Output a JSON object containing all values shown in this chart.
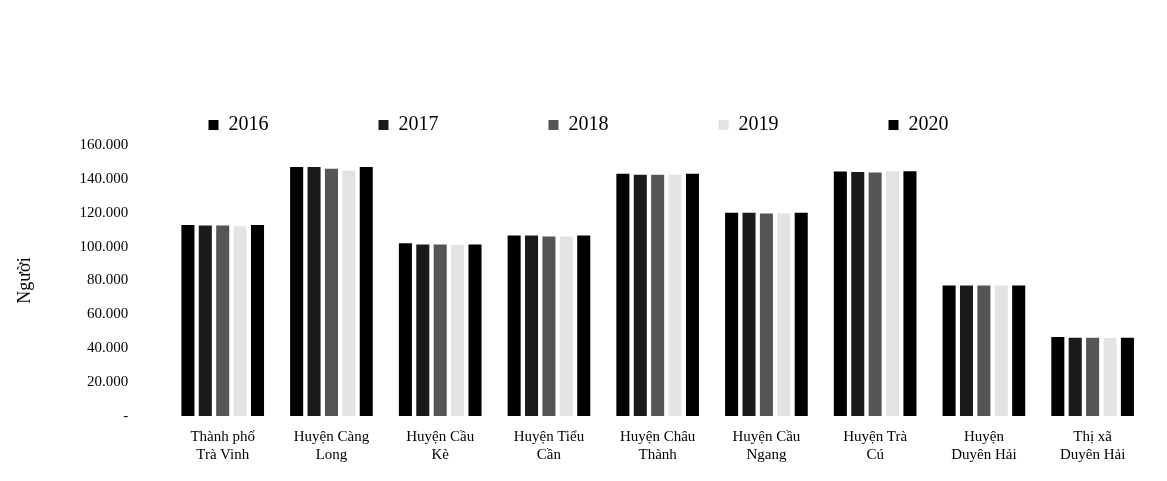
{
  "chart_data": {
    "type": "bar",
    "ylabel": "Người",
    "categories": [
      "Thành phố Trà Vinh",
      "Huyện Càng Long",
      "Huyện Cầu Kè",
      "Huyện Tiểu Cần",
      "Huyện Châu Thành",
      "Huyện Cầu Ngang",
      "Huyện Trà Cú",
      "Huyện Duyên Hải",
      "Thị xã Duyên Hải"
    ],
    "series": [
      {
        "name": "2016",
        "color": "#000000",
        "values": [
          112700,
          147000,
          102000,
          106500,
          143000,
          120000,
          144300,
          77000,
          46700
        ]
      },
      {
        "name": "2017",
        "color": "#1a1a1a",
        "values": [
          112500,
          147000,
          101300,
          106500,
          142500,
          120000,
          144000,
          77000,
          46200
        ]
      },
      {
        "name": "2018",
        "color": "#555555",
        "values": [
          112500,
          146000,
          101300,
          106000,
          142500,
          119500,
          143700,
          77000,
          46200
        ]
      },
      {
        "name": "2019",
        "color": "#e3e3e3",
        "values": [
          112000,
          145000,
          101000,
          106000,
          142500,
          119500,
          144500,
          77000,
          46000
        ]
      },
      {
        "name": "2020",
        "color": "#000000",
        "values": [
          112700,
          147000,
          101300,
          106500,
          143000,
          120000,
          144500,
          77000,
          46200
        ]
      }
    ],
    "ylim": [
      0,
      160000
    ],
    "yticks": [
      {
        "value": 0,
        "label": "-"
      },
      {
        "value": 20000,
        "label": "20.000"
      },
      {
        "value": 40000,
        "label": "40.000"
      },
      {
        "value": 60000,
        "label": "60.000"
      },
      {
        "value": 80000,
        "label": "80.000"
      },
      {
        "value": 100000,
        "label": "100.000"
      },
      {
        "value": 120000,
        "label": "120.000"
      },
      {
        "value": 140000,
        "label": "140.000"
      },
      {
        "value": 160000,
        "label": "160.000"
      }
    ],
    "grid": false,
    "legend": "top"
  }
}
